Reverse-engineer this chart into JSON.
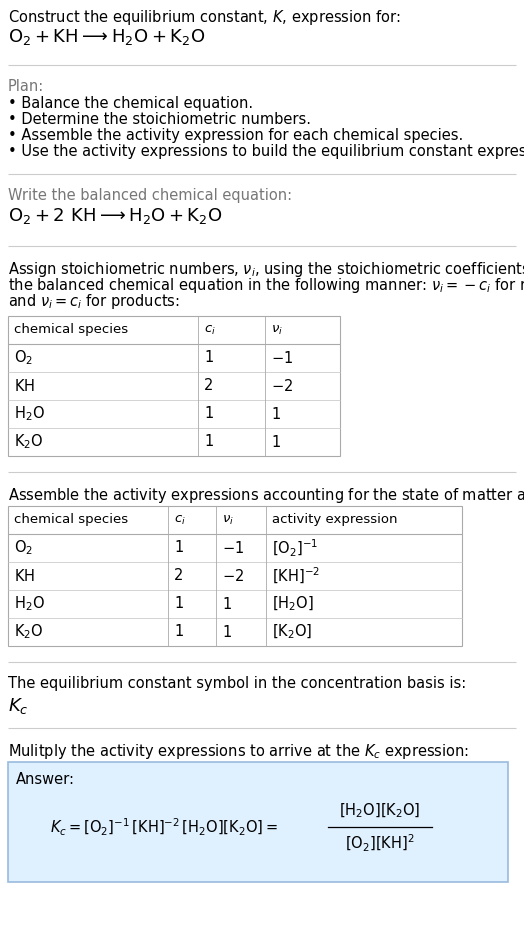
{
  "bg_color": "#ffffff",
  "text_color": "#000000",
  "gray_text": "#777777",
  "table_border": "#aaaaaa",
  "answer_bg": "#dff0ff",
  "answer_border": "#99bbdd",
  "title_line1": "Construct the equilibrium constant, $K$, expression for:",
  "title_line2": "$\\mathrm{O_2 + KH \\longrightarrow H_2O + K_2O}$",
  "plan_header": "Plan:",
  "plan_bullets": [
    "Balance the chemical equation.",
    "Determine the stoichiometric numbers.",
    "Assemble the activity expression for each chemical species.",
    "Use the activity expressions to build the equilibrium constant expression."
  ],
  "balanced_header": "Write the balanced chemical equation:",
  "balanced_eq": "$\\mathrm{O_2 + 2\\ KH \\longrightarrow H_2O + K_2O}$",
  "stoich_intro_parts": [
    "Assign stoichiometric numbers, $\\nu_i$, using the stoichiometric coefficients, $c_i$, from",
    "the balanced chemical equation in the following manner: $\\nu_i = -c_i$ for reactants",
    "and $\\nu_i = c_i$ for products:"
  ],
  "table1_headers": [
    "chemical species",
    "$c_i$",
    "$\\nu_i$"
  ],
  "table1_rows": [
    [
      "$\\mathrm{O_2}$",
      "1",
      "$-1$"
    ],
    [
      "$\\mathrm{KH}$",
      "2",
      "$-2$"
    ],
    [
      "$\\mathrm{H_2O}$",
      "1",
      "$1$"
    ],
    [
      "$\\mathrm{K_2O}$",
      "1",
      "$1$"
    ]
  ],
  "activity_intro": "Assemble the activity expressions accounting for the state of matter and $\\nu_i$:",
  "table2_headers": [
    "chemical species",
    "$c_i$",
    "$\\nu_i$",
    "activity expression"
  ],
  "table2_rows": [
    [
      "$\\mathrm{O_2}$",
      "1",
      "$-1$",
      "$[\\mathrm{O_2}]^{-1}$"
    ],
    [
      "$\\mathrm{KH}$",
      "2",
      "$-2$",
      "$[\\mathrm{KH}]^{-2}$"
    ],
    [
      "$\\mathrm{H_2O}$",
      "1",
      "$1$",
      "$[\\mathrm{H_2O}]$"
    ],
    [
      "$\\mathrm{K_2O}$",
      "1",
      "$1$",
      "$[\\mathrm{K_2O}]$"
    ]
  ],
  "kc_text": "The equilibrium constant symbol in the concentration basis is:",
  "kc_symbol": "$K_c$",
  "multiply_text": "Mulitply the activity expressions to arrive at the $K_c$ expression:",
  "answer_label": "Answer:",
  "answer_eq_left": "$K_c = [\\mathrm{O_2}]^{-1}\\,[\\mathrm{KH}]^{-2}\\,[\\mathrm{H_2O}][\\mathrm{K_2O}] = $",
  "answer_eq_frac_num": "$[\\mathrm{H_2O}][\\mathrm{K_2O}]$",
  "answer_eq_frac_den": "$[\\mathrm{O_2}][\\mathrm{KH}]^2$"
}
